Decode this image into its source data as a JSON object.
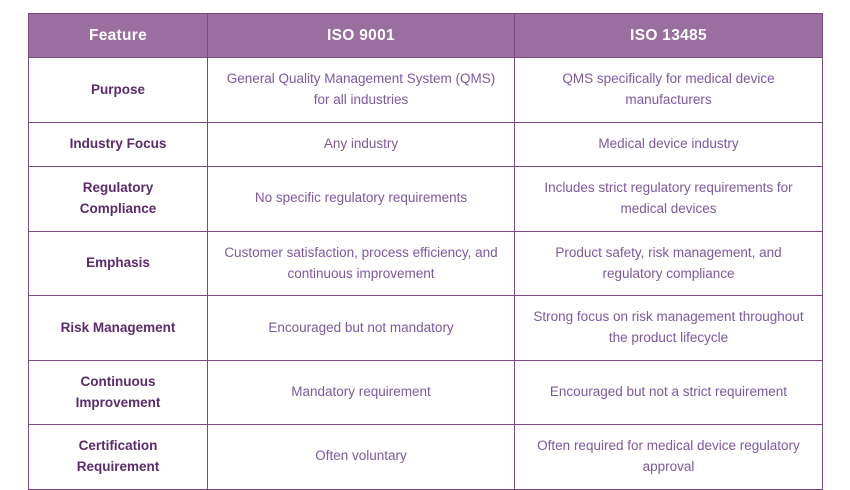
{
  "colors": {
    "header_bg": "#9A6FA0",
    "border": "#7C4A80",
    "header_text": "#FFFFFF",
    "feature_text": "#5B2B6D",
    "cell_text": "#7D58A0",
    "page_bg": "#FFFFFF"
  },
  "table": {
    "columns": [
      "Feature",
      "ISO 9001",
      "ISO 13485"
    ],
    "rows": [
      {
        "feature": "Purpose",
        "iso9001": "General Quality Management System (QMS) for all industries",
        "iso13485": "QMS specifically for medical device manufacturers"
      },
      {
        "feature": "Industry Focus",
        "iso9001": "Any industry",
        "iso13485": "Medical device industry"
      },
      {
        "feature": "Regulatory Compliance",
        "iso9001": "No specific regulatory requirements",
        "iso13485": "Includes strict regulatory requirements for medical devices"
      },
      {
        "feature": "Emphasis",
        "iso9001": "Customer satisfaction, process efficiency, and continuous improvement",
        "iso13485": "Product safety, risk management, and regulatory compliance"
      },
      {
        "feature": "Risk Management",
        "iso9001": "Encouraged but not mandatory",
        "iso13485": "Strong focus on risk management throughout the product lifecycle"
      },
      {
        "feature": "Continuous Improvement",
        "iso9001": "Mandatory requirement",
        "iso13485": "Encouraged but not a strict requirement"
      },
      {
        "feature": "Certification Requirement",
        "iso9001": "Often voluntary",
        "iso13485": "Often required for medical device regulatory approval"
      }
    ]
  }
}
